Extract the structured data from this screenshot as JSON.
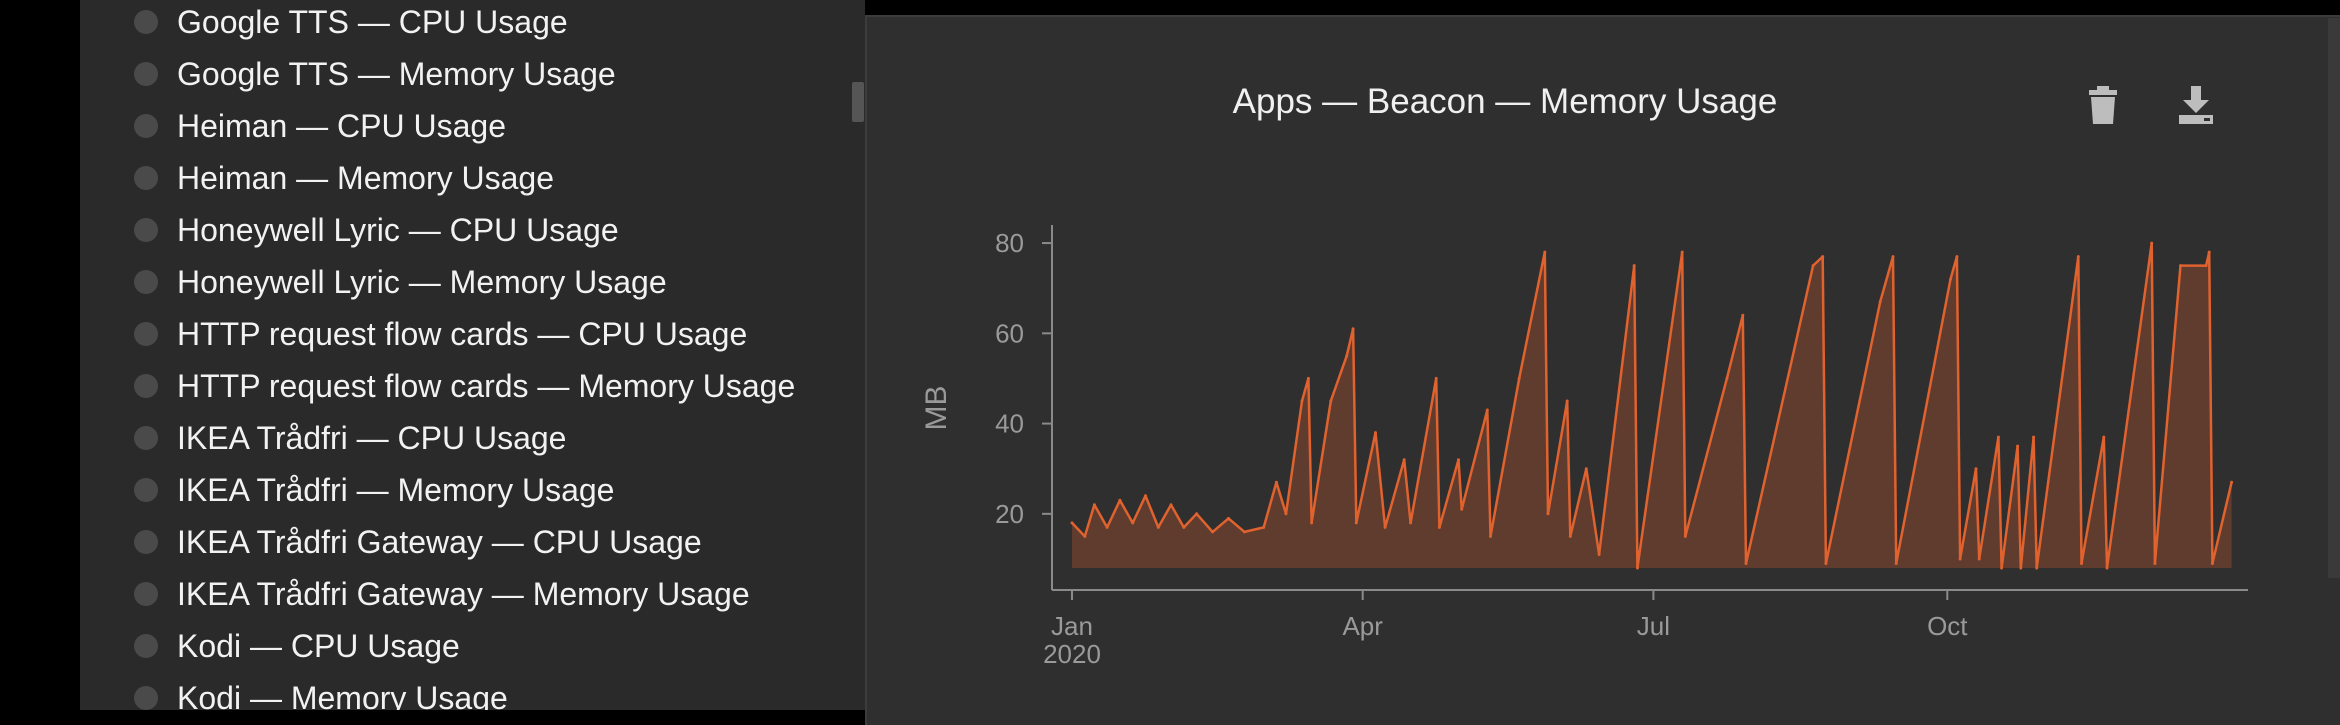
{
  "sidebar": {
    "items": [
      {
        "label": "Google TTS — CPU Usage"
      },
      {
        "label": "Google TTS — Memory Usage"
      },
      {
        "label": "Heiman — CPU Usage"
      },
      {
        "label": "Heiman — Memory Usage"
      },
      {
        "label": "Honeywell Lyric — CPU Usage"
      },
      {
        "label": "Honeywell Lyric — Memory Usage"
      },
      {
        "label": "HTTP request flow cards — CPU Usage"
      },
      {
        "label": "HTTP request flow cards — Memory Usage"
      },
      {
        "label": "IKEA Trådfri — CPU Usage"
      },
      {
        "label": "IKEA Trådfri — Memory Usage"
      },
      {
        "label": "IKEA Trådfri Gateway — CPU Usage"
      },
      {
        "label": "IKEA Trådfri Gateway — Memory Usage"
      },
      {
        "label": "Kodi — CPU Usage"
      },
      {
        "label": "Kodi — Memory Usage"
      }
    ]
  },
  "icons": {
    "trash": "trash-icon",
    "download": "download-icon"
  },
  "colors": {
    "series": "#e0622e",
    "area": "#e0622e",
    "sidebar_bg": "#2a2a2a",
    "panel_bg": "#2f2f2f",
    "axis": "#8a8a8a",
    "tick_text": "#9a9a9a"
  },
  "chart_data": {
    "type": "area",
    "title": "Apps — Beacon — Memory Usage",
    "ylabel": "MB",
    "xlabel": "",
    "ylim": [
      8,
      84
    ],
    "xlim": [
      "2020-01-01",
      "2020-12-31"
    ],
    "yticks": [
      20,
      40,
      60,
      80
    ],
    "xticks": [
      {
        "date": "2020-01-01",
        "label": "Jan",
        "sublabel": "2020"
      },
      {
        "date": "2020-04-01",
        "label": "Apr",
        "sublabel": ""
      },
      {
        "date": "2020-07-01",
        "label": "Jul",
        "sublabel": ""
      },
      {
        "date": "2020-10-01",
        "label": "Oct",
        "sublabel": ""
      }
    ],
    "grid": false,
    "series": [
      {
        "points": [
          {
            "x": "2020-01-01",
            "y": 18
          },
          {
            "x": "2020-01-05",
            "y": 15
          },
          {
            "x": "2020-01-08",
            "y": 22
          },
          {
            "x": "2020-01-12",
            "y": 17
          },
          {
            "x": "2020-01-16",
            "y": 23
          },
          {
            "x": "2020-01-20",
            "y": 18
          },
          {
            "x": "2020-01-24",
            "y": 24
          },
          {
            "x": "2020-01-28",
            "y": 17
          },
          {
            "x": "2020-02-01",
            "y": 22
          },
          {
            "x": "2020-02-05",
            "y": 17
          },
          {
            "x": "2020-02-09",
            "y": 20
          },
          {
            "x": "2020-02-14",
            "y": 16
          },
          {
            "x": "2020-02-19",
            "y": 19
          },
          {
            "x": "2020-02-24",
            "y": 16
          },
          {
            "x": "2020-03-01",
            "y": 17
          },
          {
            "x": "2020-03-05",
            "y": 27
          },
          {
            "x": "2020-03-08",
            "y": 20
          },
          {
            "x": "2020-03-13",
            "y": 45
          },
          {
            "x": "2020-03-15",
            "y": 50
          },
          {
            "x": "2020-03-16",
            "y": 18
          },
          {
            "x": "2020-03-22",
            "y": 45
          },
          {
            "x": "2020-03-27",
            "y": 55
          },
          {
            "x": "2020-03-29",
            "y": 61
          },
          {
            "x": "2020-03-30",
            "y": 18
          },
          {
            "x": "2020-04-05",
            "y": 38
          },
          {
            "x": "2020-04-08",
            "y": 17
          },
          {
            "x": "2020-04-14",
            "y": 32
          },
          {
            "x": "2020-04-16",
            "y": 18
          },
          {
            "x": "2020-04-24",
            "y": 50
          },
          {
            "x": "2020-04-25",
            "y": 17
          },
          {
            "x": "2020-05-01",
            "y": 32
          },
          {
            "x": "2020-05-02",
            "y": 21
          },
          {
            "x": "2020-05-10",
            "y": 43
          },
          {
            "x": "2020-05-11",
            "y": 15
          },
          {
            "x": "2020-05-20",
            "y": 50
          },
          {
            "x": "2020-05-28",
            "y": 78
          },
          {
            "x": "2020-05-29",
            "y": 20
          },
          {
            "x": "2020-06-04",
            "y": 45
          },
          {
            "x": "2020-06-05",
            "y": 15
          },
          {
            "x": "2020-06-10",
            "y": 30
          },
          {
            "x": "2020-06-14",
            "y": 11
          },
          {
            "x": "2020-06-25",
            "y": 75
          },
          {
            "x": "2020-06-26",
            "y": 8
          },
          {
            "x": "2020-07-10",
            "y": 78
          },
          {
            "x": "2020-07-11",
            "y": 15
          },
          {
            "x": "2020-07-24",
            "y": 50
          },
          {
            "x": "2020-07-29",
            "y": 64
          },
          {
            "x": "2020-07-30",
            "y": 9
          },
          {
            "x": "2020-08-20",
            "y": 75
          },
          {
            "x": "2020-08-23",
            "y": 77
          },
          {
            "x": "2020-08-24",
            "y": 9
          },
          {
            "x": "2020-09-10",
            "y": 67
          },
          {
            "x": "2020-09-14",
            "y": 77
          },
          {
            "x": "2020-09-15",
            "y": 9
          },
          {
            "x": "2020-10-02",
            "y": 72
          },
          {
            "x": "2020-10-04",
            "y": 77
          },
          {
            "x": "2020-10-05",
            "y": 10
          },
          {
            "x": "2020-10-10",
            "y": 30
          },
          {
            "x": "2020-10-11",
            "y": 10
          },
          {
            "x": "2020-10-17",
            "y": 37
          },
          {
            "x": "2020-10-18",
            "y": 8
          },
          {
            "x": "2020-10-23",
            "y": 35
          },
          {
            "x": "2020-10-24",
            "y": 8
          },
          {
            "x": "2020-10-28",
            "y": 37
          },
          {
            "x": "2020-10-29",
            "y": 8
          },
          {
            "x": "2020-11-11",
            "y": 77
          },
          {
            "x": "2020-11-12",
            "y": 9
          },
          {
            "x": "2020-11-19",
            "y": 37
          },
          {
            "x": "2020-11-20",
            "y": 8
          },
          {
            "x": "2020-12-04",
            "y": 80
          },
          {
            "x": "2020-12-05",
            "y": 9
          },
          {
            "x": "2020-12-13",
            "y": 75
          },
          {
            "x": "2020-12-21",
            "y": 75
          },
          {
            "x": "2020-12-22",
            "y": 78
          },
          {
            "x": "2020-12-23",
            "y": 9
          },
          {
            "x": "2020-12-29",
            "y": 27
          }
        ]
      }
    ]
  }
}
